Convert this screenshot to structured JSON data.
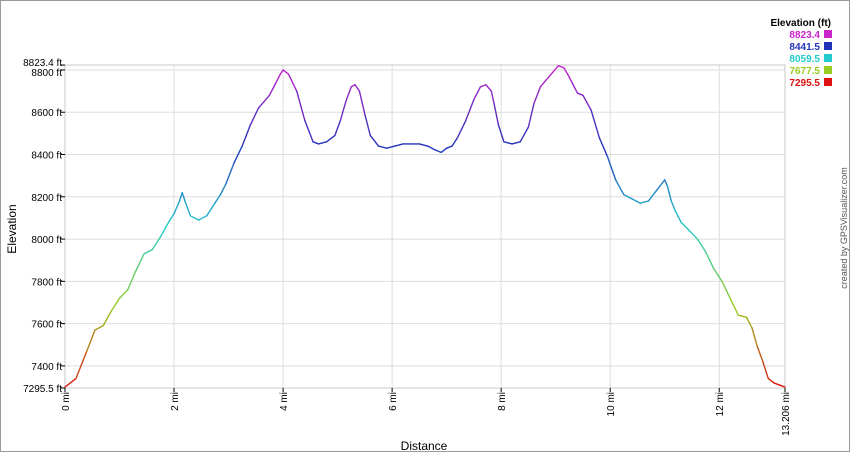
{
  "chart_data": {
    "type": "line",
    "xlabel": "Distance",
    "ylabel": "Elevation",
    "credit": "created by GPSVisualizer.com",
    "xlim": [
      0,
      13.206
    ],
    "ylim": [
      7295.5,
      8823.4
    ],
    "grid": true,
    "legend_position": "top-right",
    "x_ticks": [
      {
        "value": 0,
        "label": "0 mi"
      },
      {
        "value": 2,
        "label": "2 mi"
      },
      {
        "value": 4,
        "label": "4 mi"
      },
      {
        "value": 6,
        "label": "6 mi"
      },
      {
        "value": 8,
        "label": "8 mi"
      },
      {
        "value": 10,
        "label": "10 mi"
      },
      {
        "value": 12,
        "label": "12 mi"
      },
      {
        "value": 13.206,
        "label": "13.206 mi"
      }
    ],
    "y_ticks": [
      {
        "value": 7295.5,
        "label": "7295.5 ft"
      },
      {
        "value": 7400,
        "label": "7400 ft"
      },
      {
        "value": 7600,
        "label": "7600 ft"
      },
      {
        "value": 7800,
        "label": "7800 ft"
      },
      {
        "value": 8000,
        "label": "8000 ft"
      },
      {
        "value": 8200,
        "label": "8200 ft"
      },
      {
        "value": 8400,
        "label": "8400 ft"
      },
      {
        "value": 8600,
        "label": "8600 ft"
      },
      {
        "value": 8800,
        "label": "8800 ft"
      },
      {
        "value": 8823.4,
        "label": "8823.4 ft"
      }
    ],
    "legend": {
      "title": "Elevation (ft)",
      "entries": [
        {
          "label": "8823.4",
          "color": "#cc22cc"
        },
        {
          "label": "8441.5",
          "color": "#2233bb"
        },
        {
          "label": "8059.5",
          "color": "#22cccc"
        },
        {
          "label": "7677.5",
          "color": "#99cc22"
        },
        {
          "label": "7295.5",
          "color": "#dd1111"
        }
      ]
    },
    "series": [
      {
        "x": [
          0,
          0.2,
          0.4,
          0.55,
          0.7,
          0.85,
          1.0,
          1.15,
          1.3,
          1.45,
          1.6,
          1.75,
          1.9,
          2.0,
          2.1,
          2.15,
          2.2,
          2.3,
          2.45,
          2.6,
          2.75,
          2.85,
          2.95,
          3.1,
          3.25,
          3.4,
          3.55,
          3.65,
          3.75,
          3.85,
          3.95,
          4.0,
          4.1,
          4.25,
          4.4,
          4.55,
          4.65,
          4.8,
          4.95,
          5.05,
          5.15,
          5.25,
          5.32,
          5.4,
          5.5,
          5.6,
          5.75,
          5.9,
          6.05,
          6.2,
          6.35,
          6.5,
          6.65,
          6.8,
          6.9,
          7.0,
          7.1,
          7.2,
          7.35,
          7.5,
          7.62,
          7.72,
          7.82,
          7.87,
          7.95,
          8.05,
          8.2,
          8.35,
          8.5,
          8.6,
          8.72,
          8.85,
          8.95,
          9.05,
          9.15,
          9.22,
          9.3,
          9.4,
          9.5,
          9.65,
          9.8,
          9.95,
          10.1,
          10.25,
          10.4,
          10.55,
          10.7,
          10.85,
          11.0,
          11.05,
          11.12,
          11.2,
          11.3,
          11.45,
          11.6,
          11.75,
          11.9,
          12.05,
          12.2,
          12.35,
          12.5,
          12.6,
          12.7,
          12.8,
          12.9,
          13.0,
          13.1,
          13.206
        ],
        "y": [
          7300,
          7340,
          7470,
          7570,
          7590,
          7660,
          7720,
          7760,
          7850,
          7930,
          7950,
          8010,
          8080,
          8120,
          8180,
          8220,
          8180,
          8110,
          8090,
          8110,
          8170,
          8210,
          8260,
          8360,
          8440,
          8540,
          8620,
          8650,
          8680,
          8730,
          8780,
          8800,
          8780,
          8700,
          8560,
          8460,
          8450,
          8460,
          8490,
          8560,
          8650,
          8720,
          8730,
          8700,
          8590,
          8490,
          8440,
          8430,
          8440,
          8450,
          8450,
          8450,
          8440,
          8420,
          8410,
          8430,
          8440,
          8480,
          8560,
          8660,
          8720,
          8730,
          8700,
          8640,
          8540,
          8460,
          8450,
          8460,
          8530,
          8640,
          8720,
          8760,
          8790,
          8820,
          8810,
          8780,
          8740,
          8690,
          8680,
          8610,
          8480,
          8390,
          8280,
          8210,
          8190,
          8170,
          8180,
          8230,
          8280,
          8250,
          8180,
          8130,
          8080,
          8040,
          8000,
          7940,
          7860,
          7800,
          7720,
          7640,
          7630,
          7580,
          7490,
          7420,
          7340,
          7320,
          7310,
          7300
        ]
      }
    ]
  }
}
